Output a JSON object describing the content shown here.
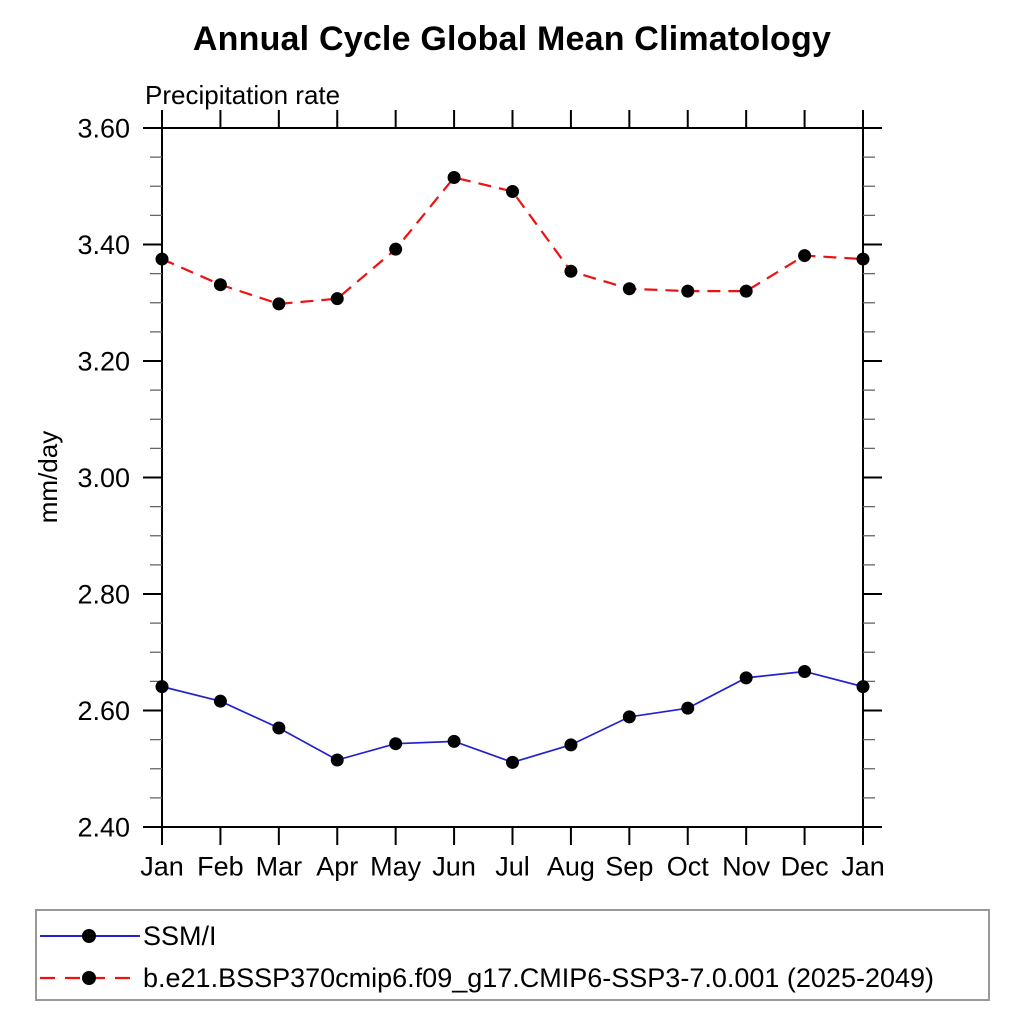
{
  "chart_data": {
    "type": "line",
    "title": "Annual Cycle Global Mean Climatology",
    "subtitle": "Precipitation rate",
    "ylabel": "mm/day",
    "categories": [
      "Jan",
      "Feb",
      "Mar",
      "Apr",
      "May",
      "Jun",
      "Jul",
      "Aug",
      "Sep",
      "Oct",
      "Nov",
      "Dec",
      "Jan"
    ],
    "ylim": [
      2.4,
      3.6
    ],
    "yticks": [
      "3.60",
      "3.40",
      "3.20",
      "3.00",
      "2.80",
      "2.60",
      "2.40"
    ],
    "yminor_step": 0.05,
    "grid": false,
    "legend_position": "bottom",
    "series": [
      {
        "name": "SSM/I",
        "color": "#2222cc",
        "line_style": "solid",
        "marker": "circle",
        "marker_color": "#000000",
        "values": [
          2.641,
          2.616,
          2.57,
          2.515,
          2.543,
          2.547,
          2.511,
          2.541,
          2.589,
          2.604,
          2.656,
          2.667,
          2.641
        ]
      },
      {
        "name": "b.e21.BSSP370cmip6.f09_g17.CMIP6-SSP3-7.0.001 (2025-2049)",
        "color": "#ee1111",
        "line_style": "dashed",
        "marker": "circle",
        "marker_color": "#000000",
        "values": [
          3.375,
          3.331,
          3.298,
          3.307,
          3.392,
          3.515,
          3.491,
          3.354,
          3.324,
          3.32,
          3.32,
          3.381,
          3.375
        ]
      }
    ]
  }
}
